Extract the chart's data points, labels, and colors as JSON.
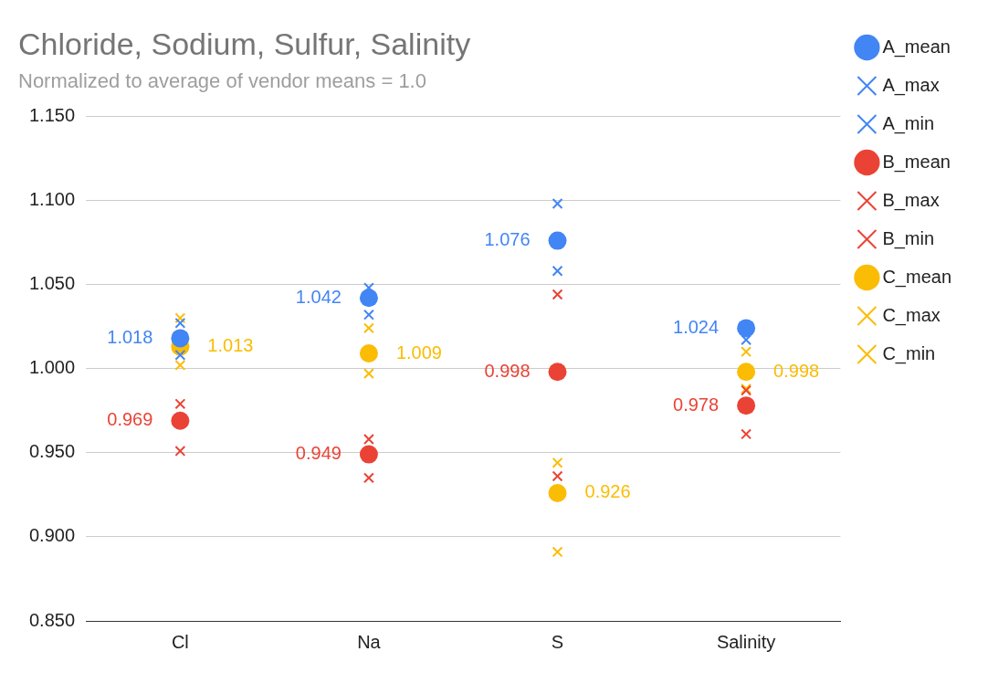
{
  "chart_data": {
    "type": "scatter",
    "title": "Chloride, Sodium, Sulfur, Salinity",
    "subtitle": "Normalized to average of vendor means = 1.0",
    "categories": [
      "Cl",
      "Na",
      "S",
      "Salinity"
    ],
    "ylim": [
      0.85,
      1.15
    ],
    "yticks": [
      {
        "value": 0.85,
        "label": "0.850"
      },
      {
        "value": 0.9,
        "label": "0.900"
      },
      {
        "value": 0.95,
        "label": "0.950"
      },
      {
        "value": 1.0,
        "label": "1.000"
      },
      {
        "value": 1.05,
        "label": "1.050"
      },
      {
        "value": 1.1,
        "label": "1.100"
      },
      {
        "value": 1.15,
        "label": "1.150"
      }
    ],
    "grid": "y",
    "legend": "right",
    "series": [
      {
        "name": "A_mean",
        "color": "#4285f4",
        "marker": "circle",
        "values": [
          1.018,
          1.042,
          1.076,
          1.024
        ],
        "value_labels": [
          "1.018",
          "1.042",
          "1.076",
          "1.024"
        ]
      },
      {
        "name": "A_max",
        "color": "#4285f4",
        "marker": "cross",
        "values": [
          1.027,
          1.048,
          1.098,
          null
        ]
      },
      {
        "name": "A_min",
        "color": "#4285f4",
        "marker": "cross",
        "values": [
          1.008,
          1.032,
          1.058,
          1.017
        ]
      },
      {
        "name": "B_mean",
        "color": "#ea4335",
        "marker": "circle",
        "values": [
          0.969,
          0.949,
          0.998,
          0.978
        ],
        "value_labels": [
          "0.969",
          "0.949",
          "0.998",
          "0.978"
        ]
      },
      {
        "name": "B_max",
        "color": "#ea4335",
        "marker": "cross",
        "values": [
          0.979,
          0.958,
          1.044,
          0.987
        ]
      },
      {
        "name": "B_min",
        "color": "#ea4335",
        "marker": "cross",
        "values": [
          0.951,
          0.935,
          0.936,
          0.961
        ]
      },
      {
        "name": "C_mean",
        "color": "#fbbc04",
        "marker": "circle",
        "values": [
          1.013,
          1.009,
          0.926,
          0.998
        ],
        "value_labels": [
          "1.013",
          "1.009",
          "0.926",
          "0.998"
        ]
      },
      {
        "name": "C_max",
        "color": "#fbbc04",
        "marker": "cross",
        "values": [
          1.03,
          1.024,
          0.944,
          1.01
        ]
      },
      {
        "name": "C_min",
        "color": "#fbbc04",
        "marker": "cross",
        "values": [
          1.002,
          0.997,
          0.891,
          0.988
        ]
      }
    ]
  }
}
